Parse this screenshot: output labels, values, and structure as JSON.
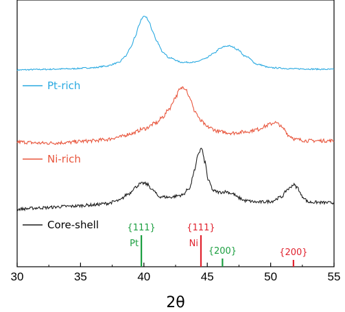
{
  "chart_data": {
    "type": "line",
    "xlabel": "2θ",
    "ylabel": "",
    "xlim": [
      30,
      55
    ],
    "xticks": [
      30,
      35,
      40,
      45,
      50,
      55
    ],
    "grid": false,
    "legend": "inline-left",
    "series": [
      {
        "name": "Pt-rich",
        "color": "#29a9e1",
        "x": [
          30,
          32,
          34,
          36,
          37,
          38,
          38.5,
          39,
          39.3,
          39.6,
          39.8,
          40.0,
          40.2,
          40.4,
          40.7,
          41,
          41.5,
          42,
          43,
          44,
          44.8,
          45.5,
          46.0,
          46.4,
          46.7,
          47.0,
          47.4,
          48,
          49,
          50,
          52,
          55
        ],
        "y": [
          0.0,
          0.01,
          0.02,
          0.04,
          0.07,
          0.13,
          0.24,
          0.42,
          0.6,
          0.8,
          0.93,
          0.98,
          0.96,
          0.88,
          0.7,
          0.52,
          0.33,
          0.22,
          0.14,
          0.14,
          0.2,
          0.3,
          0.39,
          0.43,
          0.44,
          0.42,
          0.37,
          0.25,
          0.1,
          0.04,
          0.02,
          0.01
        ]
      },
      {
        "name": "Ni-rich",
        "color": "#e8553c",
        "x": [
          30,
          32,
          34,
          35,
          36,
          37,
          38,
          39,
          40,
          41,
          41.5,
          42,
          42.5,
          42.8,
          43.1,
          43.3,
          43.6,
          44,
          44.5,
          45,
          46,
          47,
          48,
          49,
          49.5,
          50,
          50.3,
          50.6,
          51,
          51.5,
          52,
          53,
          55
        ],
        "y": [
          0.0,
          -0.02,
          -0.01,
          0.01,
          0.02,
          0.04,
          0.08,
          0.14,
          0.22,
          0.32,
          0.42,
          0.56,
          0.75,
          0.87,
          0.92,
          0.9,
          0.75,
          0.52,
          0.35,
          0.25,
          0.17,
          0.15,
          0.17,
          0.21,
          0.26,
          0.3,
          0.33,
          0.3,
          0.22,
          0.1,
          0.04,
          0.02,
          0.02
        ]
      },
      {
        "name": "Core-shell",
        "color": "#1a1a1a",
        "x": [
          30,
          32,
          34,
          36,
          37,
          38,
          38.8,
          39.3,
          39.7,
          40.0,
          40.3,
          40.7,
          41.2,
          42,
          43,
          43.6,
          44.0,
          44.3,
          44.55,
          44.8,
          45.1,
          45.5,
          46.0,
          46.5,
          47.0,
          47.5,
          48,
          49,
          50,
          50.8,
          51.4,
          51.8,
          52.1,
          52.5,
          53,
          55
        ],
        "y": [
          0.0,
          0.02,
          0.04,
          0.06,
          0.08,
          0.12,
          0.22,
          0.31,
          0.36,
          0.37,
          0.35,
          0.27,
          0.18,
          0.17,
          0.2,
          0.3,
          0.55,
          0.8,
          0.87,
          0.68,
          0.4,
          0.26,
          0.24,
          0.25,
          0.22,
          0.16,
          0.12,
          0.1,
          0.11,
          0.17,
          0.29,
          0.35,
          0.31,
          0.18,
          0.1,
          0.09
        ]
      }
    ],
    "reference_lines": [
      {
        "label": "{111}",
        "phase": "Pt",
        "x": 39.8,
        "color": "#1a9e3f"
      },
      {
        "label": "{111}",
        "phase": "Ni",
        "x": 44.5,
        "color": "#e0202c"
      },
      {
        "label": "{200}",
        "phase": "",
        "x": 46.2,
        "color": "#1a9e3f"
      },
      {
        "label": "{200}",
        "phase": "",
        "x": 51.8,
        "color": "#e0202c"
      }
    ]
  }
}
